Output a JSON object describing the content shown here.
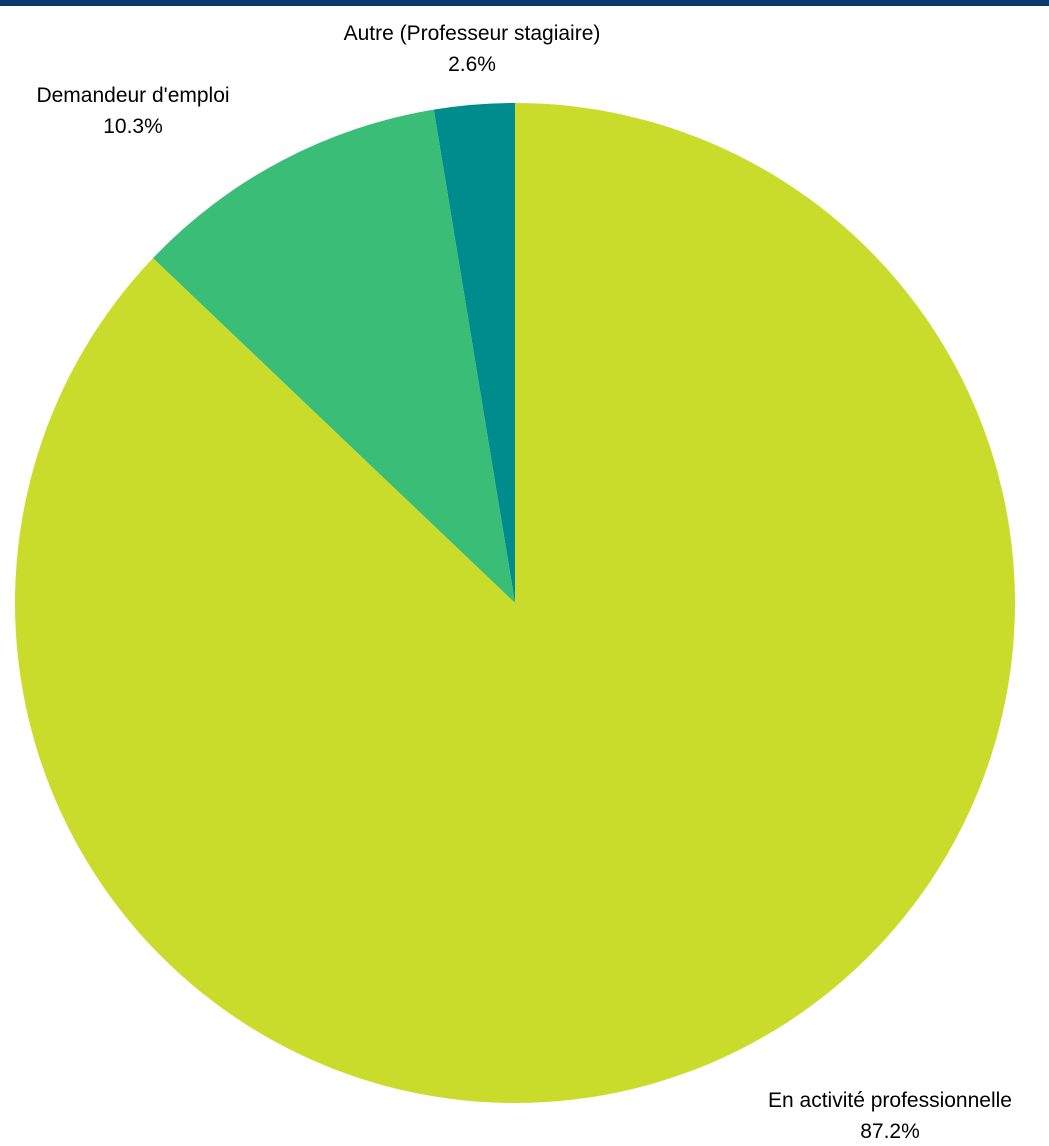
{
  "colors": {
    "top_bar": "#0b3a6b"
  },
  "chart_data": {
    "type": "pie",
    "title": "",
    "slices": [
      {
        "label": "Autre (Professeur stagiaire)",
        "value": 2.6,
        "value_label": "2.6%",
        "color": "#008c8c"
      },
      {
        "label": "Demandeur d'emploi",
        "value": 10.3,
        "value_label": "10.3%",
        "color": "#3abd76"
      },
      {
        "label": "En activité professionnelle",
        "value": 87.2,
        "value_label": "87.2%",
        "color": "#c9dc2b"
      }
    ],
    "start_angle_deg": 0,
    "direction": "counterclockwise",
    "legend": "none",
    "labels": "outside"
  }
}
